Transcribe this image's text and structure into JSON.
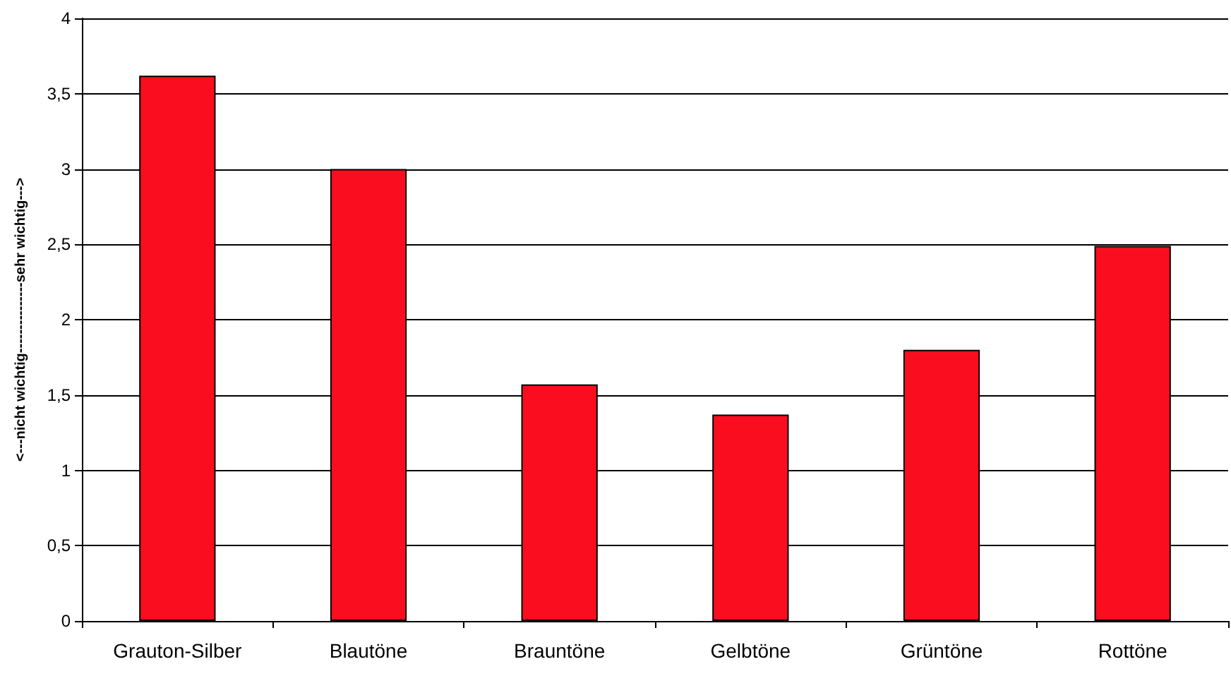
{
  "chart_data": {
    "type": "bar",
    "ylabel": "<---nicht wichtig---------------sehr wichtig--->",
    "categories": [
      "Grauton-Silber",
      "Blautöne",
      "Brauntöne",
      "Gelbtöne",
      "Grüntöne",
      "Rottöne"
    ],
    "values": [
      3.62,
      3.0,
      1.57,
      1.37,
      1.8,
      2.49
    ],
    "color": "#f90d1f",
    "ylim": [
      0,
      4
    ],
    "yticks": [
      0,
      {
        "value": 0.5,
        "label": "0,5"
      },
      1,
      {
        "value": 1.5,
        "label": "1,5"
      },
      2,
      {
        "value": 2.5,
        "label": "2,5"
      },
      3,
      {
        "value": 3.5,
        "label": "3,5"
      },
      4
    ],
    "grid": "y"
  }
}
